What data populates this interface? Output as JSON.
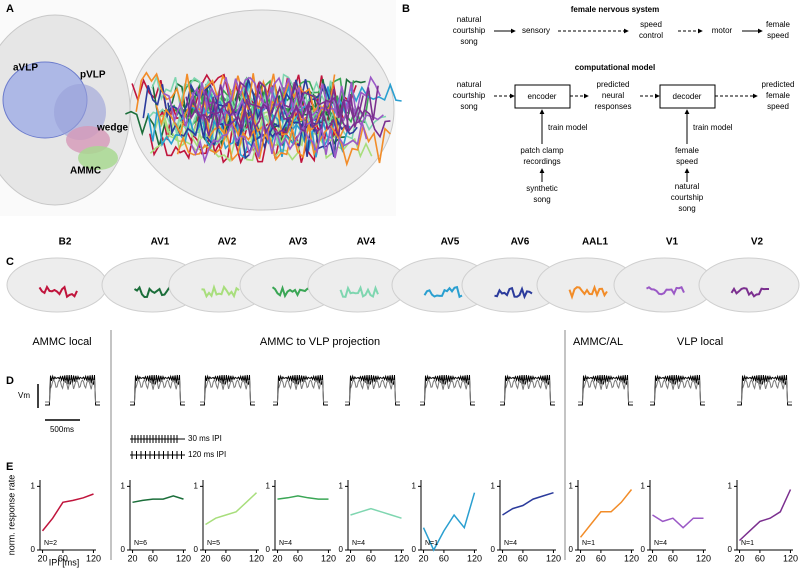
{
  "panel_a": {
    "label": "A",
    "regions": [
      "aVLP",
      "pVLP",
      "wedge",
      "AMMC"
    ]
  },
  "panel_b": {
    "label": "B",
    "system_title": "female nervous system",
    "system_nodes": [
      [
        "natural",
        "courtship",
        "song"
      ],
      [
        "sensory"
      ],
      [
        "speed",
        "control"
      ],
      [
        "motor"
      ],
      [
        "female",
        "speed"
      ]
    ],
    "model_title": "computational model",
    "model_nodes": [
      [
        "natural",
        "courtship",
        "song"
      ],
      [
        "encoder"
      ],
      [
        "predicted",
        "neural",
        "responses"
      ],
      [
        "decoder"
      ],
      [
        "predicted",
        "female",
        "speed"
      ]
    ],
    "encoder_training": {
      "arrow_label": "train model",
      "source": [
        "patch clamp",
        "recordings"
      ],
      "stimulus": [
        "synthetic",
        "song"
      ]
    },
    "decoder_training": {
      "arrow_label": "train model",
      "source": [
        "female",
        "speed"
      ],
      "stimulus": [
        "natural",
        "courtship",
        "song"
      ]
    }
  },
  "panel_c": {
    "label": "C",
    "neurons": [
      "B2",
      "AV1",
      "AV2",
      "AV3",
      "AV4",
      "AV5",
      "AV6",
      "AAL1",
      "V1",
      "V2"
    ]
  },
  "panel_d": {
    "label": "D",
    "groups": [
      "AMMC local",
      "AMMC to VLP projection",
      "AMMC/AL",
      "VLP local"
    ],
    "y_scale": "Vm",
    "x_scale": "500ms",
    "stimuli": [
      "30 ms IPI",
      "120 ms IPI"
    ]
  },
  "panel_e": {
    "label": "E"
  },
  "chart_data": [
    {
      "type": "line",
      "ylabel": "norm. response rate",
      "xlabel": "IPI [ms]",
      "color": "#c0143c",
      "x": [
        20,
        40,
        60,
        80,
        100,
        120
      ],
      "values": [
        0.3,
        0.5,
        0.75,
        0.78,
        0.82,
        0.88
      ],
      "xlim": [
        15,
        125
      ],
      "ylim": [
        0,
        1.1
      ],
      "xticks": [
        20,
        60,
        120
      ],
      "yticks": [
        0,
        1
      ],
      "annotation": "N=2"
    },
    {
      "type": "line",
      "color": "#1b6e3a",
      "x": [
        20,
        40,
        60,
        80,
        100,
        120
      ],
      "values": [
        0.75,
        0.78,
        0.8,
        0.8,
        0.85,
        0.8
      ],
      "xlim": [
        15,
        125
      ],
      "ylim": [
        0,
        1.1
      ],
      "xticks": [
        20,
        60,
        120
      ],
      "yticks": [
        0,
        1
      ],
      "annotation": "N=6"
    },
    {
      "type": "line",
      "color": "#a8de7c",
      "x": [
        20,
        40,
        60,
        80,
        100,
        120
      ],
      "values": [
        0.4,
        0.5,
        0.55,
        0.6,
        0.75,
        0.9
      ],
      "xlim": [
        15,
        125
      ],
      "ylim": [
        0,
        1.1
      ],
      "xticks": [
        20,
        60,
        120
      ],
      "yticks": [
        0,
        1
      ],
      "annotation": "N=5"
    },
    {
      "type": "line",
      "color": "#3aa655",
      "x": [
        20,
        40,
        60,
        80,
        100,
        120
      ],
      "values": [
        0.8,
        0.82,
        0.85,
        0.82,
        0.8,
        0.8
      ],
      "xlim": [
        15,
        125
      ],
      "ylim": [
        0,
        1.1
      ],
      "xticks": [
        20,
        60,
        120
      ],
      "yticks": [
        0,
        1
      ],
      "annotation": "N=4"
    },
    {
      "type": "line",
      "color": "#7fd6b0",
      "x": [
        20,
        40,
        60,
        80,
        100,
        120
      ],
      "values": [
        0.55,
        0.6,
        0.65,
        0.6,
        0.55,
        0.5
      ],
      "xlim": [
        15,
        125
      ],
      "ylim": [
        0,
        1.1
      ],
      "xticks": [
        20,
        60,
        120
      ],
      "yticks": [
        0,
        1
      ],
      "annotation": "N=4"
    },
    {
      "type": "line",
      "color": "#2a9fd0",
      "x": [
        20,
        40,
        60,
        80,
        100,
        120
      ],
      "values": [
        0.35,
        0.0,
        0.3,
        0.55,
        0.35,
        0.9
      ],
      "xlim": [
        15,
        125
      ],
      "ylim": [
        0,
        1.1
      ],
      "xticks": [
        20,
        60,
        120
      ],
      "yticks": [
        0,
        1
      ],
      "annotation": "N=1"
    },
    {
      "type": "line",
      "color": "#2b3b9c",
      "x": [
        20,
        40,
        60,
        80,
        100,
        120
      ],
      "values": [
        0.55,
        0.65,
        0.7,
        0.8,
        0.85,
        0.9
      ],
      "xlim": [
        15,
        125
      ],
      "ylim": [
        0,
        1.1
      ],
      "xticks": [
        20,
        60,
        120
      ],
      "yticks": [
        0,
        1
      ],
      "annotation": "N=4"
    },
    {
      "type": "line",
      "color": "#f28c28",
      "x": [
        20,
        40,
        60,
        80,
        100,
        120
      ],
      "values": [
        0.2,
        0.4,
        0.6,
        0.6,
        0.75,
        0.95
      ],
      "xlim": [
        15,
        125
      ],
      "ylim": [
        0,
        1.1
      ],
      "xticks": [
        20,
        60,
        120
      ],
      "yticks": [
        0,
        1
      ],
      "annotation": "N=1"
    },
    {
      "type": "line",
      "color": "#9b59c6",
      "x": [
        20,
        40,
        60,
        80,
        100,
        120
      ],
      "values": [
        0.55,
        0.45,
        0.5,
        0.35,
        0.5,
        0.5
      ],
      "xlim": [
        15,
        125
      ],
      "ylim": [
        0,
        1.1
      ],
      "xticks": [
        20,
        60,
        120
      ],
      "yticks": [
        0,
        1
      ],
      "annotation": "N=4"
    },
    {
      "type": "line",
      "color": "#7b2f8f",
      "x": [
        20,
        40,
        60,
        80,
        100,
        120
      ],
      "values": [
        0.15,
        0.3,
        0.45,
        0.5,
        0.6,
        0.95
      ],
      "xlim": [
        15,
        125
      ],
      "ylim": [
        0,
        1.1
      ],
      "xticks": [
        20,
        60,
        120
      ],
      "yticks": [
        0,
        1
      ],
      "annotation": "N=1"
    }
  ]
}
